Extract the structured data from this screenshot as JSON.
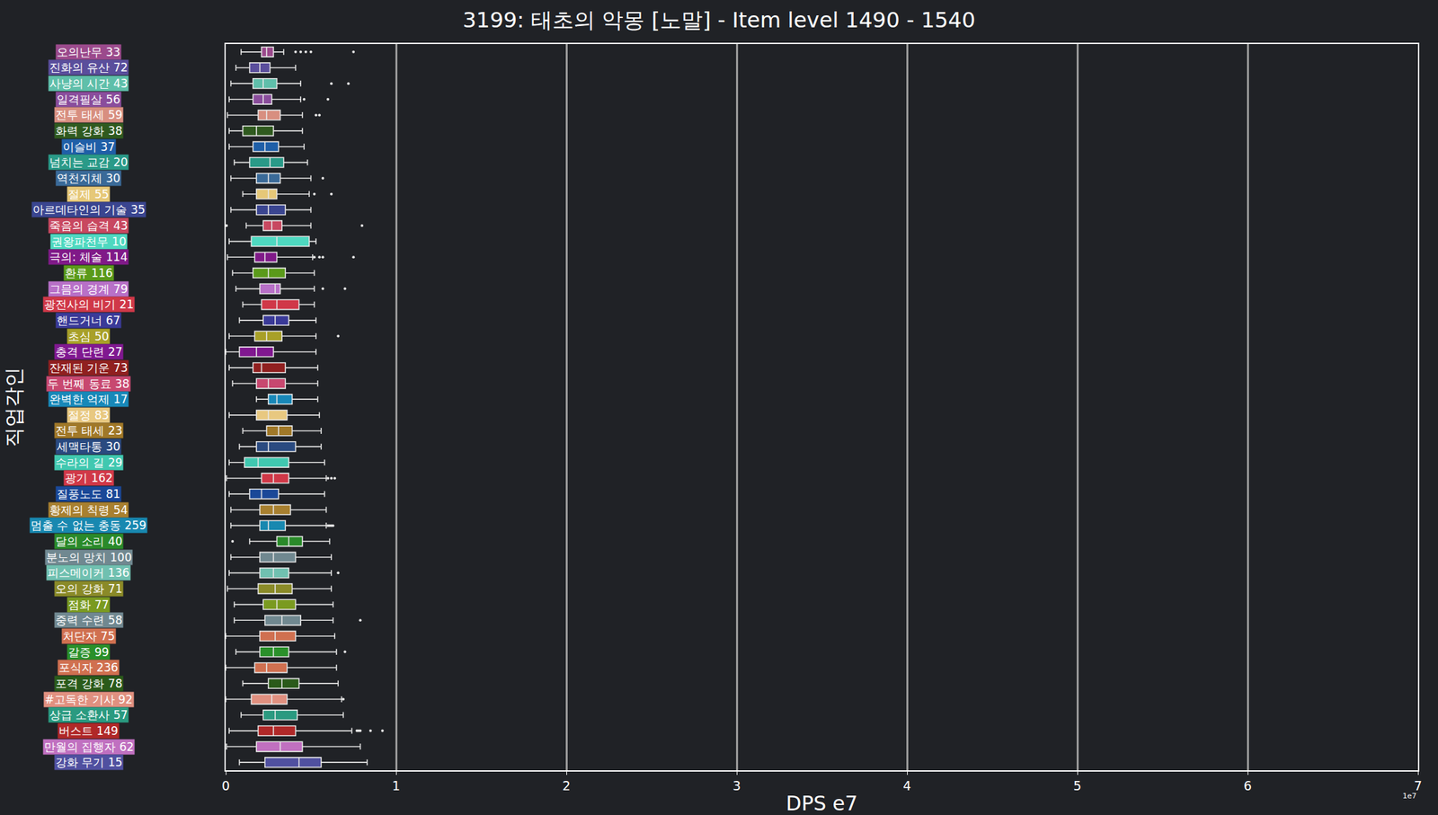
{
  "chart_data": {
    "type": "box",
    "orientation": "horizontal",
    "title": "3199: 태초의 악몽 [노말] - Item level 1490 - 1540",
    "x_label": "DPS e7",
    "y_label": "직업각인",
    "annotations": [
      "1e7"
    ],
    "xlim": [
      0,
      7
    ],
    "xticks": [
      0,
      1,
      2,
      3,
      4,
      5,
      6,
      7
    ],
    "grid": true,
    "categories": [
      "오의난무 33",
      "진화의 유산 72",
      "사냥의 시간 43",
      "일격필살 56",
      "전투 태세 59",
      "화력 강화 38",
      "이슬비 37",
      "넘치는 교감 20",
      "역천지체 30",
      "절제 55",
      "아르데타인의 기술 35",
      "죽음의 습격 43",
      "권왕파천무 10",
      "극의: 체술 114",
      "환류 116",
      "그믐의 경계 79",
      "광전사의 비기 21",
      "핸드거너 67",
      "초심 50",
      "충격 단련 27",
      "잔재된 기운 73",
      "두 번째 동료 38",
      "완벽한 억제 17",
      "절정 83",
      "전투 태세 23",
      "세맥타통 30",
      "수라의 길 29",
      "광기 162",
      "질풍노도 81",
      "황제의 칙령 54",
      "멈출 수 없는 충동 259",
      "달의 소리 40",
      "분노의 망치 100",
      "피스메이커 136",
      "오의 강화 71",
      "점화 77",
      "중력 수련 58",
      "처단자 75",
      "갈증 99",
      "포식자 236",
      "포격 강화 78",
      "#고독한 기사 92",
      "상급 소환사 57",
      "버스트 149",
      "만월의 집행자 62",
      "강화 무기 15"
    ],
    "colors": [
      "#9b4a8c",
      "#5a4e9c",
      "#5fbfaa",
      "#8a4d9c",
      "#d88f80",
      "#2f5a1f",
      "#1f5fa8",
      "#2a9a88",
      "#3a6a98",
      "#e6c878",
      "#3a4590",
      "#c84860",
      "#4ed8c0",
      "#801a88",
      "#5a9a1a",
      "#b870c8",
      "#d03848",
      "#3a3a98",
      "#a8a028",
      "#801890",
      "#902020",
      "#c84870",
      "#1888b8",
      "#e8c880",
      "#a07828",
      "#2a4a80",
      "#40c8b0",
      "#d03848",
      "#1a4898",
      "#a88030",
      "#1888b0",
      "#2a8a2a",
      "#708890",
      "#70c0b0",
      "#8a8a28",
      "#7a9a20",
      "#708890",
      "#d07050",
      "#2a902a",
      "#d07050",
      "#2a5a1a",
      "#e09080",
      "#2a9a80",
      "#b02828",
      "#c070c0",
      "#5050a0"
    ],
    "stats": [
      {
        "low": 0.09,
        "q1": 0.21,
        "median": 0.24,
        "q3": 0.28,
        "high": 0.34,
        "outliers": [
          0.41,
          0.44,
          0.47,
          0.5,
          0.75
        ]
      },
      {
        "low": 0.06,
        "q1": 0.14,
        "median": 0.2,
        "q3": 0.26,
        "high": 0.41,
        "outliers": []
      },
      {
        "low": 0.03,
        "q1": 0.16,
        "median": 0.22,
        "q3": 0.3,
        "high": 0.44,
        "outliers": [
          0.62,
          0.72
        ]
      },
      {
        "low": 0.02,
        "q1": 0.16,
        "median": 0.22,
        "q3": 0.27,
        "high": 0.44,
        "outliers": [
          0.46,
          0.6
        ]
      },
      {
        "low": 0.01,
        "q1": 0.19,
        "median": 0.24,
        "q3": 0.32,
        "high": 0.45,
        "outliers": [
          0.53,
          0.55
        ]
      },
      {
        "low": 0.02,
        "q1": 0.1,
        "median": 0.18,
        "q3": 0.28,
        "high": 0.45,
        "outliers": []
      },
      {
        "low": 0.02,
        "q1": 0.16,
        "median": 0.23,
        "q3": 0.31,
        "high": 0.46,
        "outliers": []
      },
      {
        "low": 0.05,
        "q1": 0.14,
        "median": 0.26,
        "q3": 0.34,
        "high": 0.48,
        "outliers": []
      },
      {
        "low": 0.03,
        "q1": 0.18,
        "median": 0.25,
        "q3": 0.32,
        "high": 0.5,
        "outliers": [
          0.57
        ]
      },
      {
        "low": 0.1,
        "q1": 0.18,
        "median": 0.25,
        "q3": 0.3,
        "high": 0.49,
        "outliers": [
          0.52,
          0.62
        ]
      },
      {
        "low": 0.03,
        "q1": 0.18,
        "median": 0.25,
        "q3": 0.35,
        "high": 0.5,
        "outliers": []
      },
      {
        "low": 0.12,
        "q1": 0.22,
        "median": 0.27,
        "q3": 0.33,
        "high": 0.5,
        "outliers": [
          0.005,
          0.8
        ]
      },
      {
        "low": 0.02,
        "q1": 0.15,
        "median": 0.3,
        "q3": 0.49,
        "high": 0.53,
        "outliers": []
      },
      {
        "low": 0.01,
        "q1": 0.17,
        "median": 0.23,
        "q3": 0.3,
        "high": 0.51,
        "outliers": [
          0.52,
          0.55,
          0.57,
          0.75
        ]
      },
      {
        "low": 0.04,
        "q1": 0.16,
        "median": 0.25,
        "q3": 0.35,
        "high": 0.52,
        "outliers": []
      },
      {
        "low": 0.06,
        "q1": 0.2,
        "median": 0.29,
        "q3": 0.32,
        "high": 0.52,
        "outliers": [
          0.57,
          0.7
        ]
      },
      {
        "low": 0.1,
        "q1": 0.21,
        "median": 0.3,
        "q3": 0.43,
        "high": 0.52,
        "outliers": []
      },
      {
        "low": 0.08,
        "q1": 0.22,
        "median": 0.29,
        "q3": 0.37,
        "high": 0.53,
        "outliers": []
      },
      {
        "low": 0.02,
        "q1": 0.17,
        "median": 0.24,
        "q3": 0.33,
        "high": 0.53,
        "outliers": [
          0.66
        ]
      },
      {
        "low": 0.0,
        "q1": 0.08,
        "median": 0.18,
        "q3": 0.28,
        "high": 0.53,
        "outliers": []
      },
      {
        "low": 0.02,
        "q1": 0.16,
        "median": 0.21,
        "q3": 0.35,
        "high": 0.54,
        "outliers": []
      },
      {
        "low": 0.04,
        "q1": 0.18,
        "median": 0.25,
        "q3": 0.35,
        "high": 0.54,
        "outliers": []
      },
      {
        "low": 0.18,
        "q1": 0.25,
        "median": 0.3,
        "q3": 0.39,
        "high": 0.54,
        "outliers": []
      },
      {
        "low": 0.02,
        "q1": 0.18,
        "median": 0.25,
        "q3": 0.36,
        "high": 0.55,
        "outliers": []
      },
      {
        "low": 0.1,
        "q1": 0.24,
        "median": 0.31,
        "q3": 0.39,
        "high": 0.56,
        "outliers": []
      },
      {
        "low": 0.08,
        "q1": 0.18,
        "median": 0.25,
        "q3": 0.41,
        "high": 0.56,
        "outliers": []
      },
      {
        "low": 0.02,
        "q1": 0.11,
        "median": 0.19,
        "q3": 0.37,
        "high": 0.58,
        "outliers": []
      },
      {
        "low": 0.005,
        "q1": 0.21,
        "median": 0.28,
        "q3": 0.37,
        "high": 0.59,
        "outliers": [
          0.6,
          0.62,
          0.64
        ]
      },
      {
        "low": 0.02,
        "q1": 0.14,
        "median": 0.21,
        "q3": 0.31,
        "high": 0.58,
        "outliers": []
      },
      {
        "low": 0.03,
        "q1": 0.2,
        "median": 0.28,
        "q3": 0.38,
        "high": 0.59,
        "outliers": []
      },
      {
        "low": 0.03,
        "q1": 0.2,
        "median": 0.25,
        "q3": 0.35,
        "high": 0.59,
        "outliers": [
          0.6,
          0.61,
          0.62,
          0.63
        ]
      },
      {
        "low": 0.14,
        "q1": 0.3,
        "median": 0.37,
        "q3": 0.45,
        "high": 0.61,
        "outliers": [
          0.04
        ]
      },
      {
        "low": 0.03,
        "q1": 0.2,
        "median": 0.28,
        "q3": 0.41,
        "high": 0.62,
        "outliers": []
      },
      {
        "low": 0.02,
        "q1": 0.2,
        "median": 0.28,
        "q3": 0.37,
        "high": 0.62,
        "outliers": [
          0.66
        ]
      },
      {
        "low": 0.01,
        "q1": 0.19,
        "median": 0.29,
        "q3": 0.39,
        "high": 0.62,
        "outliers": []
      },
      {
        "low": 0.05,
        "q1": 0.22,
        "median": 0.3,
        "q3": 0.41,
        "high": 0.63,
        "outliers": []
      },
      {
        "low": 0.05,
        "q1": 0.23,
        "median": 0.33,
        "q3": 0.44,
        "high": 0.63,
        "outliers": [
          0.79
        ]
      },
      {
        "low": 0.0,
        "q1": 0.2,
        "median": 0.29,
        "q3": 0.41,
        "high": 0.64,
        "outliers": []
      },
      {
        "low": 0.06,
        "q1": 0.2,
        "median": 0.28,
        "q3": 0.37,
        "high": 0.65,
        "outliers": [
          0.7
        ]
      },
      {
        "low": 0.0,
        "q1": 0.17,
        "median": 0.24,
        "q3": 0.36,
        "high": 0.65,
        "outliers": []
      },
      {
        "low": 0.1,
        "q1": 0.25,
        "median": 0.33,
        "q3": 0.43,
        "high": 0.66,
        "outliers": []
      },
      {
        "low": 0.0,
        "q1": 0.15,
        "median": 0.27,
        "q3": 0.36,
        "high": 0.68,
        "outliers": [
          0.69
        ]
      },
      {
        "low": 0.09,
        "q1": 0.22,
        "median": 0.29,
        "q3": 0.42,
        "high": 0.69,
        "outliers": []
      },
      {
        "low": 0.02,
        "q1": 0.19,
        "median": 0.28,
        "q3": 0.41,
        "high": 0.74,
        "outliers": [
          0.77,
          0.78,
          0.79,
          0.85,
          0.92
        ]
      },
      {
        "low": 0.005,
        "q1": 0.18,
        "median": 0.32,
        "q3": 0.45,
        "high": 0.79,
        "outliers": []
      },
      {
        "low": 0.08,
        "q1": 0.23,
        "median": 0.43,
        "q3": 0.56,
        "high": 0.83,
        "outliers": []
      }
    ]
  }
}
